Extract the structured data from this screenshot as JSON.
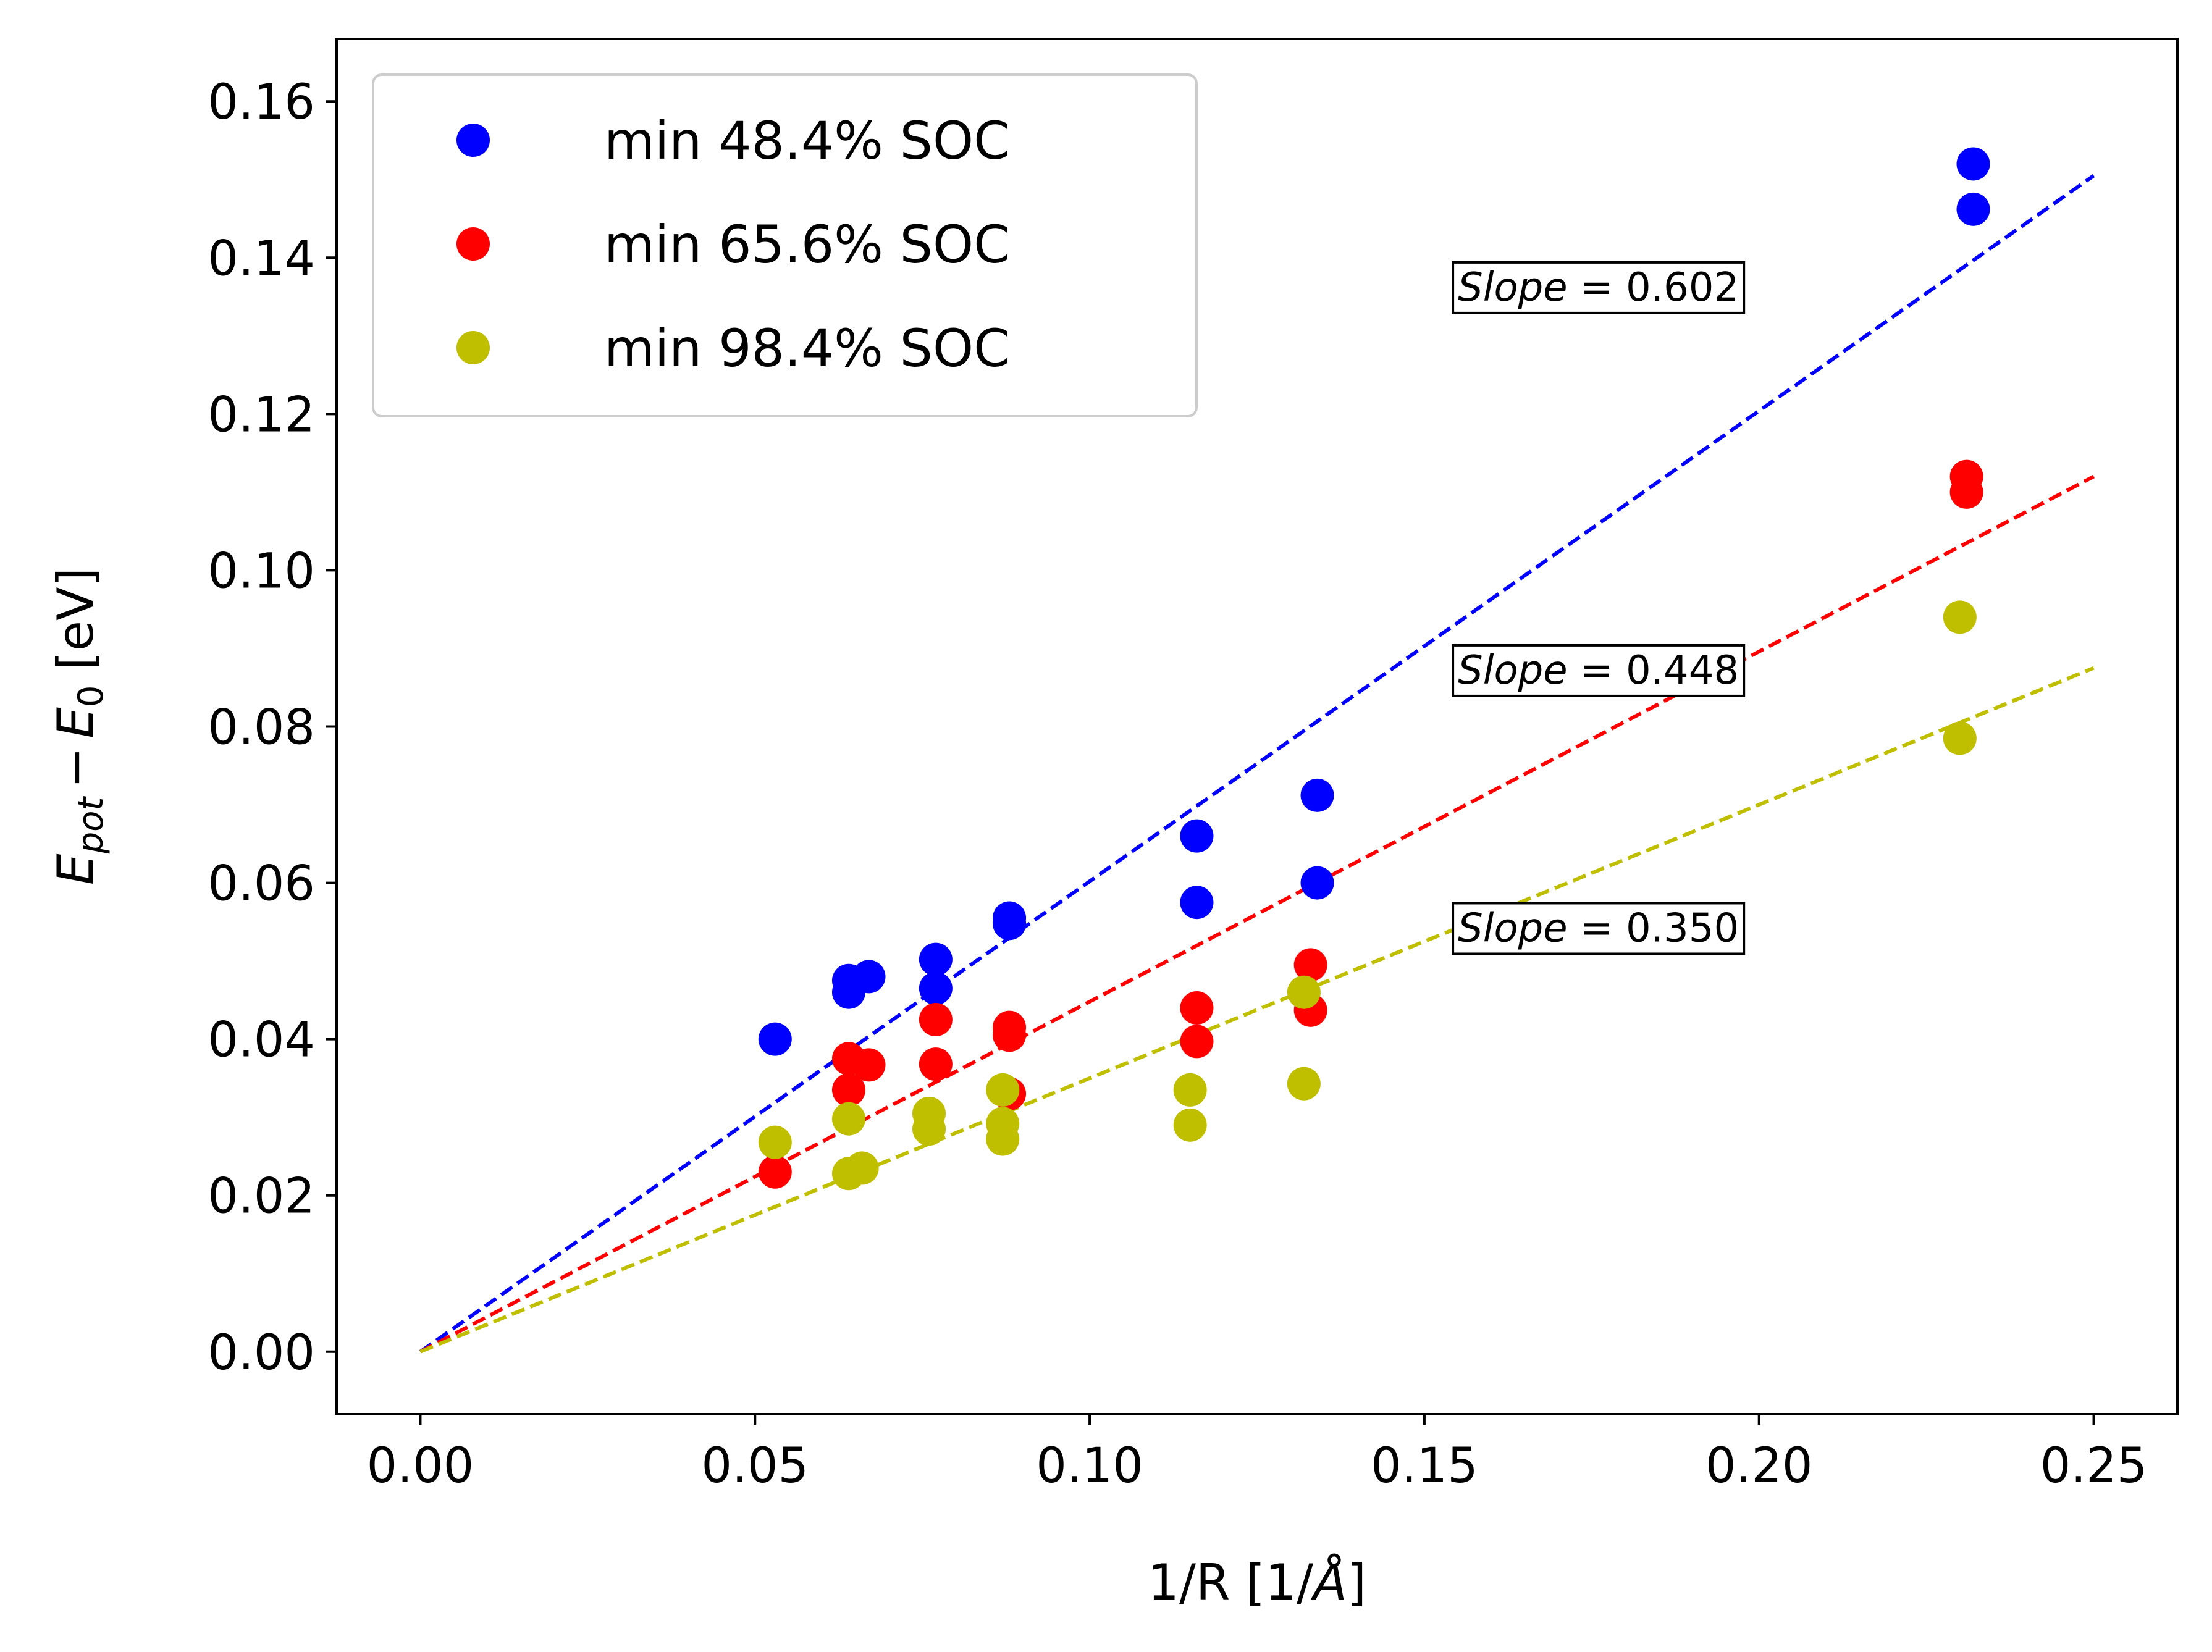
{
  "chart_data": {
    "type": "scatter",
    "xlabel": "1/R [1/Å]",
    "ylabel": "E_pot − E_0 [eV]",
    "ylabel_parts": {
      "e1": "E",
      "sub1": "pot",
      "minus": "−",
      "e2": "E",
      "sub2": "0",
      "unit": "[eV]"
    },
    "xlabel_parts": {
      "prefix": "1/R [1/",
      "angstrom": "Å",
      "suffix": "]"
    },
    "xlim": [
      -0.0125,
      0.2625
    ],
    "ylim": [
      -0.008,
      0.168
    ],
    "xticks": [
      0.0,
      0.05,
      0.1,
      0.15,
      0.2,
      0.25
    ],
    "xtick_labels": [
      "0.00",
      "0.05",
      "0.10",
      "0.15",
      "0.20",
      "0.25"
    ],
    "yticks": [
      0.0,
      0.02,
      0.04,
      0.06,
      0.08,
      0.1,
      0.12,
      0.14,
      0.16
    ],
    "ytick_labels": [
      "0.00",
      "0.02",
      "0.04",
      "0.06",
      "0.08",
      "0.10",
      "0.12",
      "0.14",
      "0.16"
    ],
    "grid": false,
    "legend_position": "upper-left",
    "series": [
      {
        "name": "min 48.4% SOC",
        "color": "#0000ff",
        "slope": 0.602,
        "points": [
          [
            0.053,
            0.04
          ],
          [
            0.064,
            0.0475
          ],
          [
            0.064,
            0.046
          ],
          [
            0.067,
            0.048
          ],
          [
            0.077,
            0.0502
          ],
          [
            0.077,
            0.0465
          ],
          [
            0.088,
            0.0555
          ],
          [
            0.088,
            0.0548
          ],
          [
            0.116,
            0.066
          ],
          [
            0.116,
            0.0575
          ],
          [
            0.134,
            0.0712
          ],
          [
            0.134,
            0.06
          ],
          [
            0.232,
            0.152
          ],
          [
            0.232,
            0.1462
          ]
        ]
      },
      {
        "name": "min 65.6% SOC",
        "color": "#ff0000",
        "slope": 0.448,
        "points": [
          [
            0.053,
            0.023
          ],
          [
            0.064,
            0.0375
          ],
          [
            0.064,
            0.0335
          ],
          [
            0.067,
            0.0367
          ],
          [
            0.077,
            0.0425
          ],
          [
            0.077,
            0.0368
          ],
          [
            0.088,
            0.0415
          ],
          [
            0.088,
            0.0405
          ],
          [
            0.088,
            0.033
          ],
          [
            0.116,
            0.044
          ],
          [
            0.116,
            0.0397
          ],
          [
            0.133,
            0.0495
          ],
          [
            0.133,
            0.0437
          ],
          [
            0.231,
            0.112
          ],
          [
            0.231,
            0.11
          ]
        ]
      },
      {
        "name": "min 98.4% SOC",
        "color": "#bfbf00",
        "slope": 0.35,
        "points": [
          [
            0.053,
            0.0268
          ],
          [
            0.064,
            0.0298
          ],
          [
            0.064,
            0.0228
          ],
          [
            0.066,
            0.0235
          ],
          [
            0.076,
            0.0305
          ],
          [
            0.076,
            0.0285
          ],
          [
            0.087,
            0.0335
          ],
          [
            0.087,
            0.0292
          ],
          [
            0.087,
            0.0272
          ],
          [
            0.115,
            0.0335
          ],
          [
            0.115,
            0.029
          ],
          [
            0.132,
            0.046
          ],
          [
            0.132,
            0.0343
          ],
          [
            0.23,
            0.094
          ],
          [
            0.23,
            0.0785
          ]
        ]
      }
    ],
    "annotations": [
      {
        "italic": "Slope",
        "text": " = 0.602",
        "x": 0.155,
        "y": 0.1345
      },
      {
        "italic": "Slope",
        "text": " = 0.448",
        "x": 0.155,
        "y": 0.0855
      },
      {
        "italic": "Slope",
        "text": " = 0.350",
        "x": 0.155,
        "y": 0.0525
      }
    ],
    "fit_x_end": 0.25
  }
}
